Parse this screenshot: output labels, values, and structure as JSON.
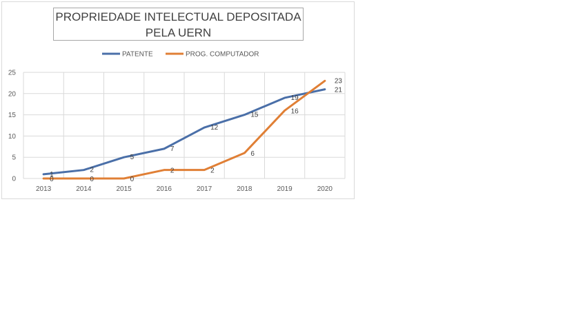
{
  "chart_data": {
    "type": "line",
    "title": "PROPRIEDADE INTELECTUAL DEPOSITADA PELA UERN",
    "categories": [
      "2013",
      "2014",
      "2015",
      "2016",
      "2017",
      "2018",
      "2019",
      "2020"
    ],
    "series": [
      {
        "name": "PATENTE",
        "values": [
          1,
          2,
          5,
          7,
          12,
          15,
          19,
          21
        ],
        "color": "#4a6fa8"
      },
      {
        "name": "PROG. COMPUTADOR",
        "values": [
          0,
          0,
          0,
          2,
          2,
          6,
          16,
          23
        ],
        "color": "#e07f35"
      }
    ],
    "y_ticks": [
      "0",
      "5",
      "10",
      "15",
      "20",
      "25"
    ],
    "ylim": [
      0,
      25
    ],
    "grid": true,
    "legend_position": "top"
  }
}
